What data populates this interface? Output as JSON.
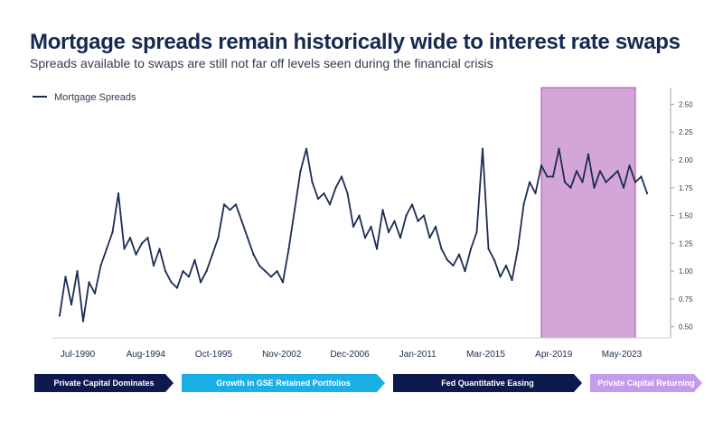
{
  "header": {
    "title": "Mortgage spreads remain historically wide to interest rate swaps",
    "subtitle": "Spreads available to swaps are still not far off levels seen during the financial crisis"
  },
  "colors": {
    "line": "#1c2c54",
    "highlight": "#d4a6d8",
    "highlight_border": "#a64cae",
    "phase_navy": "#0e1a4e",
    "phase_cyan": "#1ab0e6",
    "phase_lavender": "#c39bea"
  },
  "chart_data": {
    "type": "line",
    "title": "Mortgage spreads remain historically wide to interest rate swaps",
    "xlabel": "",
    "ylabel": "",
    "ylim": [
      0.4,
      2.65
    ],
    "yticks": [
      "2.50",
      "2.25",
      "2.00",
      "1.75",
      "1.50",
      "1.25",
      "1.00",
      "0.75",
      "0.50"
    ],
    "xtick_labels": [
      "Jul-1990",
      "Aug-1994",
      "Oct-1995",
      "Nov-2002",
      "Dec-2006",
      "Jan-2011",
      "Mar-2015",
      "Apr-2019",
      "May-2023"
    ],
    "legend": {
      "label": "Mortgage Spreads",
      "position": "top-left"
    },
    "highlight_period": {
      "label": "Private Capital Returning",
      "x_start": 0.82,
      "x_end": 0.98
    },
    "series": [
      {
        "name": "Mortgage Spreads",
        "x_fraction": [
          0.0,
          0.01,
          0.02,
          0.03,
          0.04,
          0.05,
          0.06,
          0.07,
          0.08,
          0.09,
          0.1,
          0.11,
          0.12,
          0.13,
          0.14,
          0.15,
          0.16,
          0.17,
          0.18,
          0.19,
          0.2,
          0.21,
          0.22,
          0.23,
          0.24,
          0.25,
          0.26,
          0.27,
          0.28,
          0.29,
          0.3,
          0.31,
          0.32,
          0.33,
          0.34,
          0.35,
          0.36,
          0.37,
          0.38,
          0.39,
          0.4,
          0.41,
          0.42,
          0.43,
          0.44,
          0.45,
          0.46,
          0.47,
          0.48,
          0.49,
          0.5,
          0.51,
          0.52,
          0.53,
          0.54,
          0.55,
          0.56,
          0.57,
          0.58,
          0.59,
          0.6,
          0.61,
          0.62,
          0.63,
          0.64,
          0.65,
          0.66,
          0.67,
          0.68,
          0.69,
          0.7,
          0.71,
          0.72,
          0.73,
          0.74,
          0.75,
          0.76,
          0.77,
          0.78,
          0.79,
          0.8,
          0.81,
          0.82,
          0.83,
          0.84,
          0.85,
          0.86,
          0.87,
          0.88,
          0.89,
          0.9,
          0.91,
          0.92,
          0.93,
          0.94,
          0.95,
          0.96,
          0.97,
          0.98,
          0.99,
          1.0
        ],
        "values": [
          0.6,
          0.95,
          0.7,
          1.0,
          0.55,
          0.9,
          0.8,
          1.05,
          1.2,
          1.35,
          1.7,
          1.2,
          1.3,
          1.15,
          1.25,
          1.3,
          1.05,
          1.2,
          1.0,
          0.9,
          0.85,
          1.0,
          0.95,
          1.1,
          0.9,
          1.0,
          1.15,
          1.3,
          1.6,
          1.55,
          1.6,
          1.45,
          1.3,
          1.15,
          1.05,
          1.0,
          0.95,
          1.0,
          0.9,
          1.2,
          1.55,
          1.9,
          2.1,
          1.8,
          1.65,
          1.7,
          1.6,
          1.75,
          1.85,
          1.7,
          1.4,
          1.5,
          1.3,
          1.4,
          1.2,
          1.55,
          1.35,
          1.45,
          1.3,
          1.5,
          1.6,
          1.45,
          1.5,
          1.3,
          1.4,
          1.2,
          1.1,
          1.05,
          1.15,
          1.0,
          1.2,
          1.35,
          2.1,
          1.2,
          1.1,
          0.95,
          1.05,
          0.92,
          1.2,
          1.6,
          1.8,
          1.7,
          1.95,
          1.85,
          1.85,
          2.1,
          1.8,
          1.75,
          1.9,
          1.8,
          2.05,
          1.75,
          1.9,
          1.8,
          1.85,
          1.9,
          1.75,
          1.95,
          1.8,
          1.85,
          1.7
        ]
      }
    ]
  },
  "phases": [
    {
      "label": "Private Capital Dominates",
      "color": "#0e1a4e"
    },
    {
      "label": "Growth in GSE Retained Portfolios",
      "color": "#1ab0e6"
    },
    {
      "label": "Fed Quantitative Easing",
      "color": "#0e1a4e"
    },
    {
      "label": "Private Capital Returning",
      "color": "#c39bea"
    }
  ]
}
